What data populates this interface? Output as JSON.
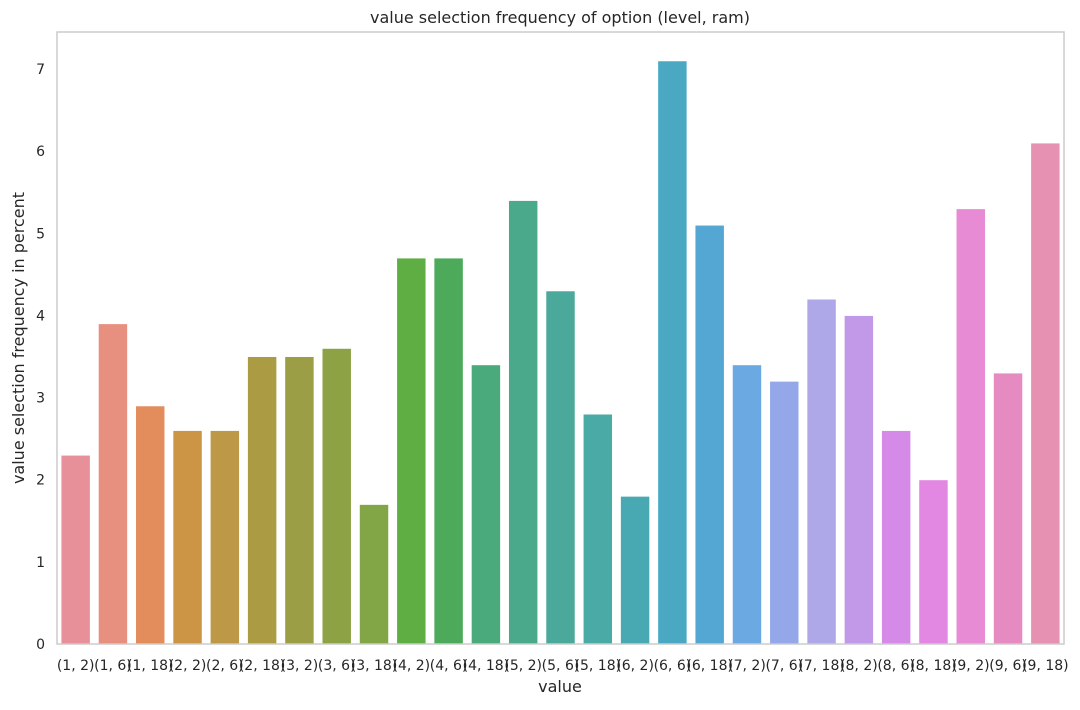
{
  "chart_data": {
    "type": "bar",
    "title": "value selection frequency of option (level, ram)",
    "xlabel": "value",
    "ylabel": "value selection frequency in percent",
    "categories": [
      "(1, 2)",
      "(1, 6)",
      "(1, 18)",
      "(2, 2)",
      "(2, 6)",
      "(2, 18)",
      "(3, 2)",
      "(3, 6)",
      "(3, 18)",
      "(4, 2)",
      "(4, 6)",
      "(4, 18)",
      "(5, 2)",
      "(5, 6)",
      "(5, 18)",
      "(6, 2)",
      "(6, 6)",
      "(6, 18)",
      "(7, 2)",
      "(7, 6)",
      "(7, 18)",
      "(8, 2)",
      "(8, 6)",
      "(8, 18)",
      "(9, 2)",
      "(9, 6)",
      "(9, 18)"
    ],
    "values": [
      2.3,
      3.9,
      2.9,
      2.6,
      2.6,
      3.5,
      3.5,
      3.6,
      1.7,
      4.7,
      4.7,
      3.4,
      5.4,
      4.3,
      2.8,
      1.8,
      7.1,
      5.1,
      3.4,
      3.2,
      4.2,
      4.0,
      2.6,
      2.0,
      5.3,
      3.3,
      6.1
    ],
    "colors": [
      "#e8909a",
      "#e8907f",
      "#e38d5c",
      "#cc9545",
      "#bd9847",
      "#ab9b43",
      "#9b9e44",
      "#8ca244",
      "#82a645",
      "#5fae43",
      "#4daa5a",
      "#4aaa7c",
      "#4aa98a",
      "#4aa99a",
      "#4aaaa6",
      "#49a9b2",
      "#4aa8c2",
      "#53a7d2",
      "#6aa9e1",
      "#93a7e9",
      "#aea8e9",
      "#c299e9",
      "#d58ae7",
      "#e287e2",
      "#e68bd4",
      "#e68bc1",
      "#e690b2"
    ],
    "yticks": [
      "0",
      "1",
      "2",
      "3",
      "4",
      "5",
      "6",
      "7"
    ],
    "ylim": [
      0,
      7.45
    ],
    "grid": false
  }
}
